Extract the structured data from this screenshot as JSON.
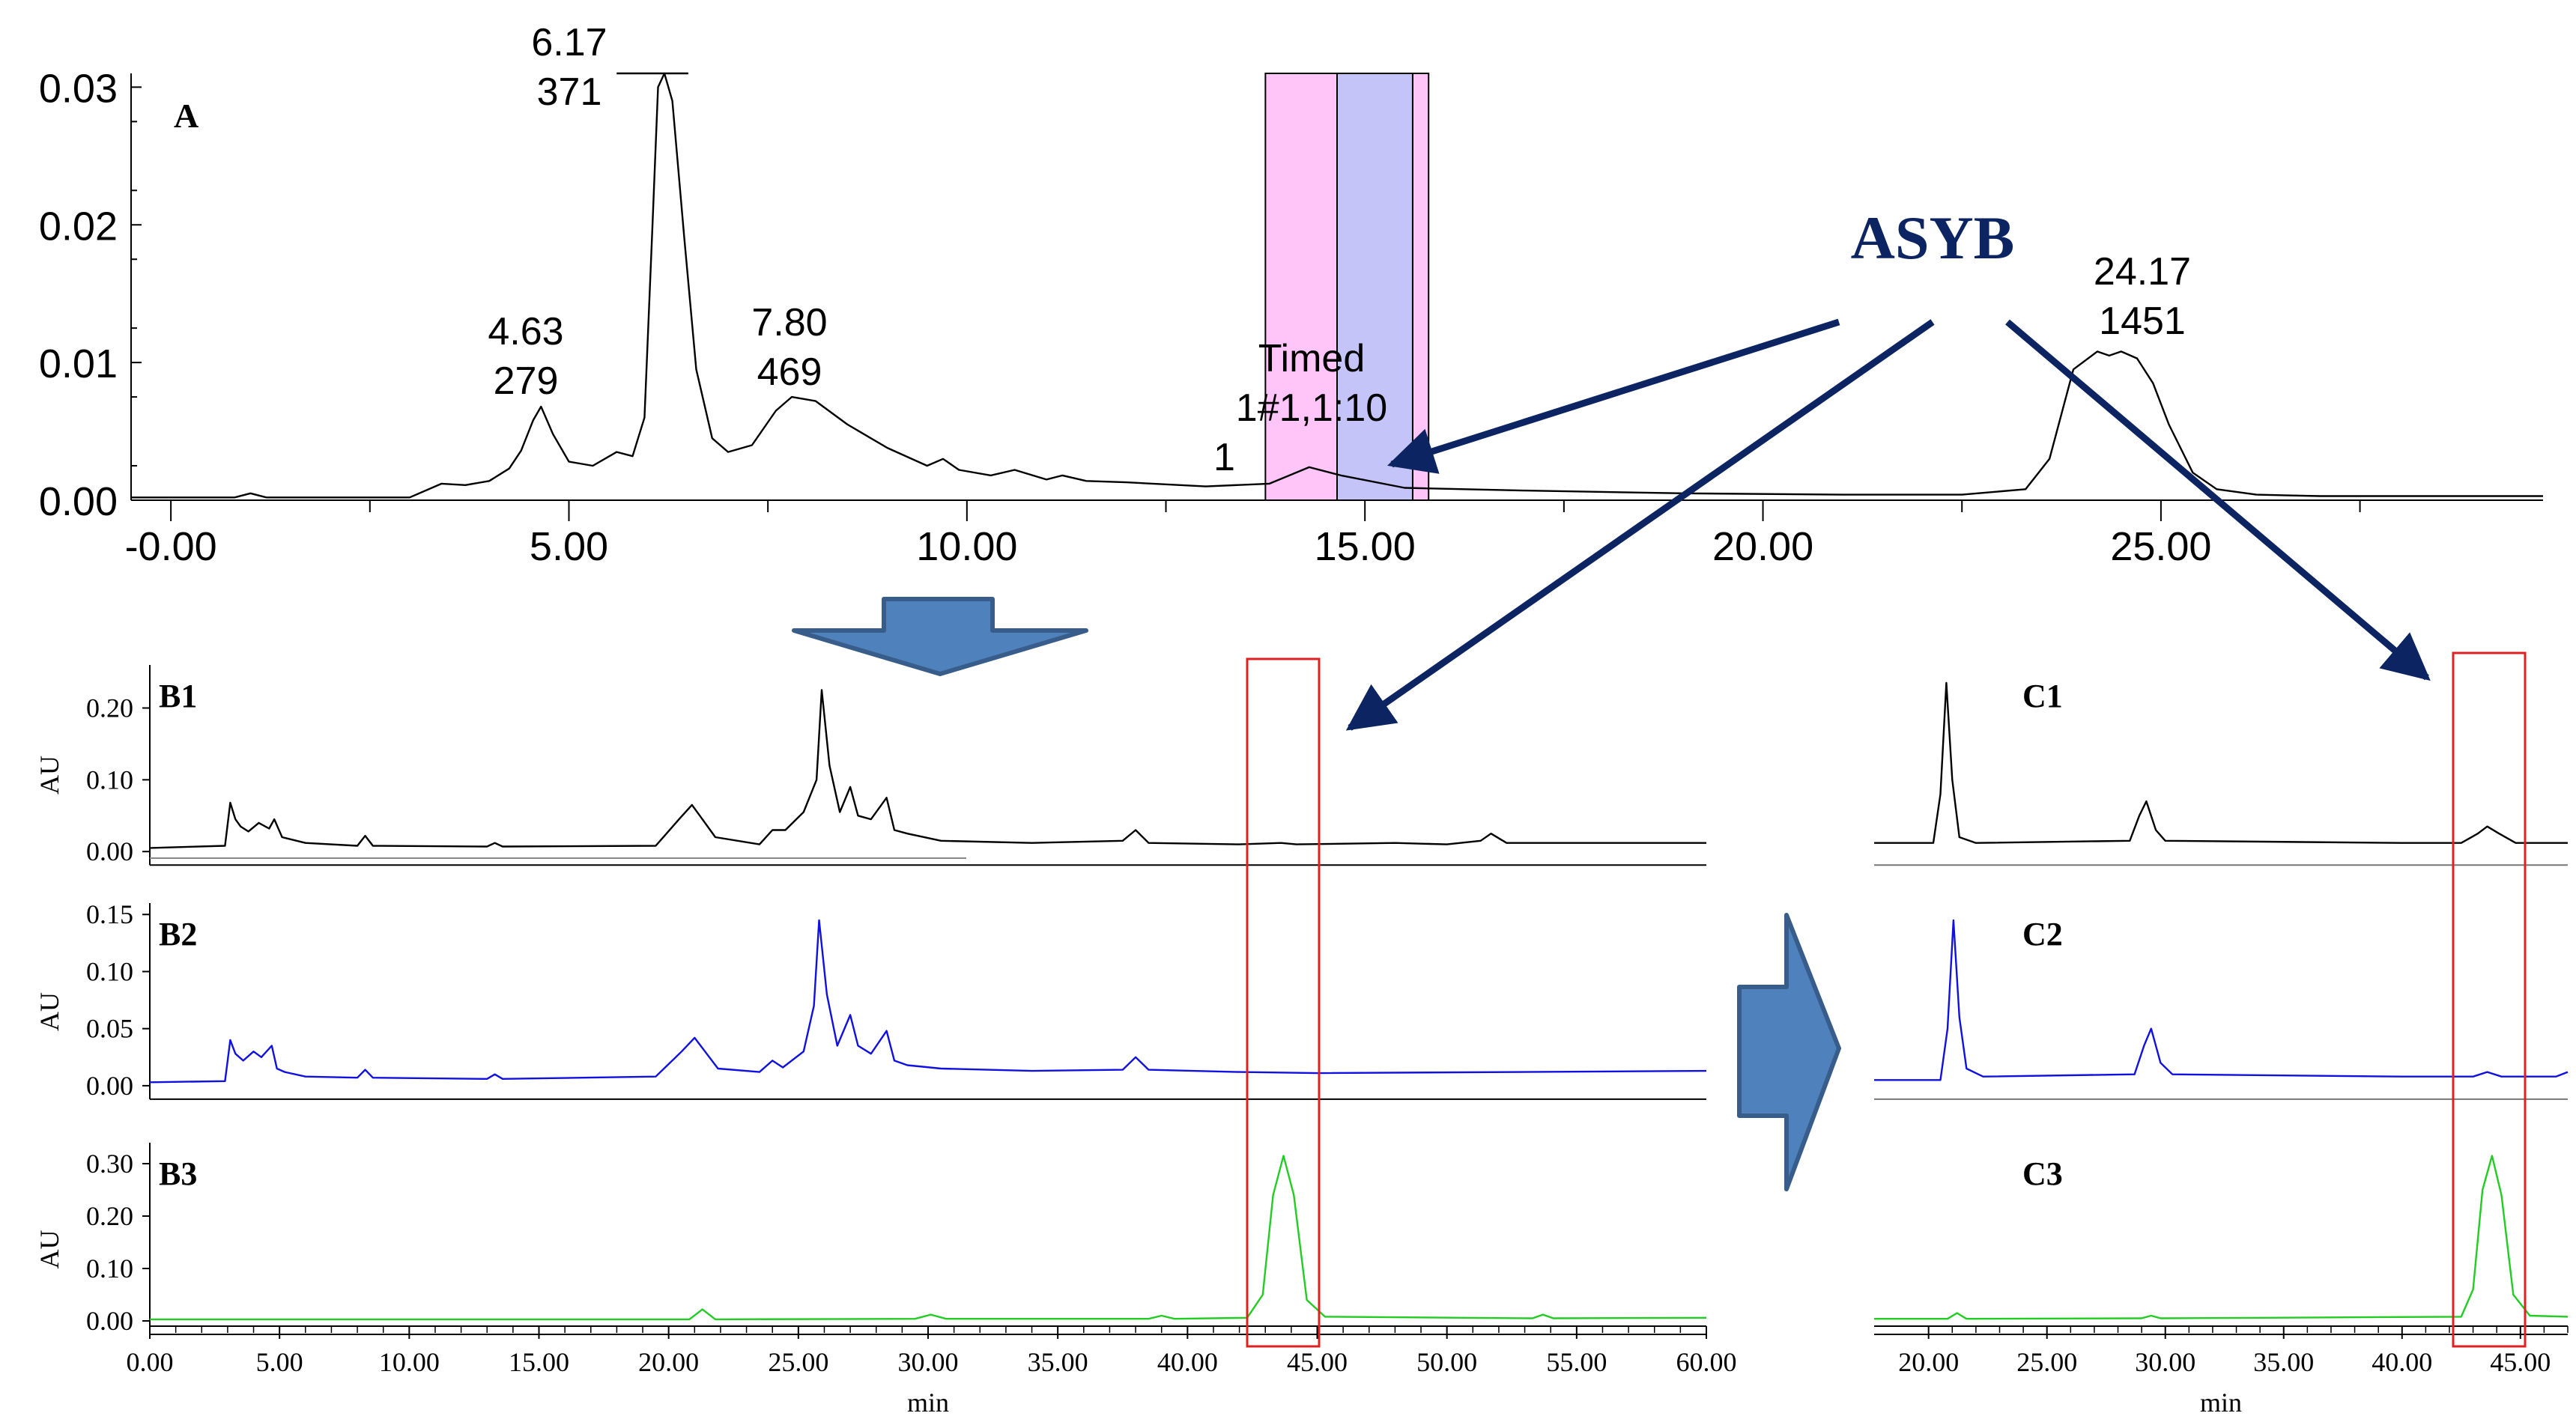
{
  "colors": {
    "trace_black": "#000000",
    "trace_blue": "#1010e0",
    "trace_green": "#22cc22",
    "callout_navy": "#0c2461",
    "band_pink": "#ffc4f8",
    "band_lavender": "#c4c4f8",
    "highlight_red": "#e02020",
    "arrow_fill": "#4f81bd",
    "arrow_stroke": "#385d8a"
  },
  "callout": {
    "label": "ASYB"
  },
  "chart_data": [
    {
      "id": "A",
      "type": "line",
      "panel_label": "A",
      "xlim": [
        -0.5,
        29.8
      ],
      "ylim": [
        0,
        0.031
      ],
      "x_ticks": [
        "-0.00",
        "5.00",
        "10.00",
        "15.00",
        "20.00",
        "25.00"
      ],
      "x_tick_values": [
        0,
        5,
        10,
        15,
        20,
        25
      ],
      "y_ticks": [
        "0.00",
        "0.01",
        "0.02",
        "0.03"
      ],
      "y_tick_values": [
        0,
        0.01,
        0.02,
        0.03
      ],
      "peak_annotations": [
        {
          "lines": [
            "6.17",
            "371"
          ],
          "x": 6.17,
          "y": 0.031
        },
        {
          "lines": [
            "4.63",
            "279"
          ],
          "x": 4.63,
          "y": 0.0068
        },
        {
          "lines": [
            "7.80",
            "469"
          ],
          "x": 7.8,
          "y": 0.0077
        },
        {
          "lines": [
            "24.17",
            "1451"
          ],
          "x": 24.17,
          "y": 0.0112
        },
        {
          "lines": [
            "Timed",
            "1#1,1:10",
            "1"
          ],
          "x": 14.3,
          "y": 0.0025
        }
      ],
      "collection_bands": [
        {
          "from": 13.75,
          "to": 14.65,
          "color": "pink"
        },
        {
          "from": 14.65,
          "to": 15.6,
          "color": "lavender"
        },
        {
          "from": 15.6,
          "to": 15.8,
          "color": "pink"
        }
      ],
      "series": [
        {
          "color": "black",
          "x": [
            -0.5,
            0.8,
            1.0,
            1.2,
            3.0,
            3.4,
            3.7,
            4.0,
            4.25,
            4.4,
            4.55,
            4.65,
            4.8,
            5.0,
            5.3,
            5.6,
            5.8,
            5.95,
            6.05,
            6.12,
            6.2,
            6.3,
            6.45,
            6.6,
            6.8,
            7.0,
            7.3,
            7.6,
            7.8,
            8.1,
            8.5,
            9.0,
            9.5,
            9.7,
            9.9,
            10.3,
            10.6,
            11.0,
            11.2,
            11.5,
            12.0,
            13.0,
            13.8,
            14.3,
            14.7,
            15.5,
            17.0,
            19.0,
            21.0,
            22.5,
            23.3,
            23.6,
            23.9,
            24.2,
            24.35,
            24.5,
            24.7,
            24.9,
            25.1,
            25.4,
            25.7,
            26.2,
            27.0,
            29.8
          ],
          "y": [
            0.0002,
            0.0002,
            0.0005,
            0.0002,
            0.0002,
            0.0012,
            0.0011,
            0.0014,
            0.0023,
            0.0036,
            0.0058,
            0.0068,
            0.0048,
            0.0028,
            0.0025,
            0.0035,
            0.0032,
            0.006,
            0.02,
            0.03,
            0.031,
            0.029,
            0.019,
            0.0095,
            0.0045,
            0.0035,
            0.004,
            0.0065,
            0.0075,
            0.0072,
            0.0055,
            0.0038,
            0.0025,
            0.003,
            0.0022,
            0.0018,
            0.0022,
            0.0015,
            0.0018,
            0.0014,
            0.0013,
            0.001,
            0.0012,
            0.0024,
            0.0018,
            0.0009,
            0.0007,
            0.0005,
            0.0004,
            0.0004,
            0.0008,
            0.003,
            0.0095,
            0.0108,
            0.0105,
            0.0108,
            0.0103,
            0.0085,
            0.0055,
            0.002,
            0.0008,
            0.0004,
            0.0003,
            0.0003
          ]
        }
      ]
    },
    {
      "id": "B1",
      "type": "line",
      "panel_label": "B1",
      "ylabel": "AU",
      "xlim": [
        0,
        60
      ],
      "ylim": [
        -0.005,
        0.26
      ],
      "y_ticks": [
        "0.00",
        "0.10",
        "0.20"
      ],
      "y_tick_values": [
        0,
        0.1,
        0.2
      ],
      "series": [
        {
          "color": "black",
          "x": [
            0,
            2.9,
            3.1,
            3.3,
            3.5,
            3.8,
            4.2,
            4.6,
            4.8,
            5.1,
            6.0,
            8.0,
            8.3,
            8.6,
            13.0,
            13.3,
            13.6,
            19.5,
            20.4,
            20.9,
            21.3,
            21.8,
            23.5,
            24.0,
            24.5,
            25.2,
            25.7,
            25.9,
            26.2,
            26.6,
            27.0,
            27.3,
            27.8,
            28.4,
            28.7,
            29.2,
            30.5,
            34.0,
            37.5,
            38.0,
            38.5,
            42.0,
            43.6,
            44.2,
            48.0,
            50.0,
            51.3,
            51.7,
            52.3,
            60.0
          ],
          "y": [
            0.005,
            0.008,
            0.068,
            0.045,
            0.035,
            0.028,
            0.04,
            0.032,
            0.045,
            0.02,
            0.012,
            0.008,
            0.022,
            0.008,
            0.007,
            0.012,
            0.007,
            0.008,
            0.045,
            0.065,
            0.045,
            0.02,
            0.01,
            0.03,
            0.03,
            0.055,
            0.1,
            0.225,
            0.12,
            0.055,
            0.09,
            0.05,
            0.045,
            0.075,
            0.03,
            0.025,
            0.015,
            0.012,
            0.015,
            0.03,
            0.012,
            0.01,
            0.012,
            0.01,
            0.012,
            0.01,
            0.015,
            0.025,
            0.012,
            0.012
          ]
        }
      ]
    },
    {
      "id": "B2",
      "type": "line",
      "panel_label": "B2",
      "ylabel": "AU",
      "xlim": [
        0,
        60
      ],
      "ylim": [
        -0.004,
        0.16
      ],
      "y_ticks": [
        "0.00",
        "0.05",
        "0.10",
        "0.15"
      ],
      "y_tick_values": [
        0,
        0.05,
        0.1,
        0.15
      ],
      "series": [
        {
          "color": "blue",
          "x": [
            0,
            2.9,
            3.1,
            3.3,
            3.6,
            4.0,
            4.3,
            4.7,
            4.9,
            5.2,
            6.0,
            8.0,
            8.3,
            8.6,
            13.0,
            13.3,
            13.6,
            19.5,
            20.5,
            21.0,
            21.4,
            21.9,
            23.5,
            24.0,
            24.4,
            25.2,
            25.6,
            25.8,
            26.1,
            26.5,
            27.0,
            27.3,
            27.8,
            28.4,
            28.7,
            29.2,
            30.5,
            34.0,
            37.5,
            38.0,
            38.5,
            42.0,
            45.0,
            60.0
          ],
          "y": [
            0.003,
            0.004,
            0.04,
            0.028,
            0.022,
            0.03,
            0.025,
            0.035,
            0.015,
            0.012,
            0.008,
            0.007,
            0.014,
            0.007,
            0.006,
            0.01,
            0.006,
            0.008,
            0.03,
            0.042,
            0.03,
            0.015,
            0.012,
            0.022,
            0.016,
            0.03,
            0.07,
            0.145,
            0.08,
            0.035,
            0.062,
            0.035,
            0.028,
            0.048,
            0.022,
            0.018,
            0.015,
            0.013,
            0.014,
            0.025,
            0.014,
            0.012,
            0.011,
            0.013
          ]
        }
      ]
    },
    {
      "id": "B3",
      "type": "line",
      "panel_label": "B3",
      "ylabel": "AU",
      "xlabel": "min",
      "xlim": [
        0,
        60
      ],
      "ylim": [
        -0.01,
        0.34
      ],
      "x_ticks": [
        "0.00",
        "5.00",
        "10.00",
        "15.00",
        "20.00",
        "25.00",
        "30.00",
        "35.00",
        "40.00",
        "45.00",
        "50.00",
        "55.00",
        "60.00"
      ],
      "x_tick_values": [
        0,
        5,
        10,
        15,
        20,
        25,
        30,
        35,
        40,
        45,
        50,
        55,
        60
      ],
      "y_ticks": [
        "0.00",
        "0.10",
        "0.20",
        "0.30"
      ],
      "y_tick_values": [
        0,
        0.1,
        0.2,
        0.3
      ],
      "series": [
        {
          "color": "green",
          "x": [
            0,
            20.8,
            21.3,
            21.8,
            29.5,
            30.1,
            30.7,
            38.5,
            39.0,
            39.5,
            42.3,
            42.9,
            43.3,
            43.7,
            44.1,
            44.6,
            45.3,
            53.3,
            53.7,
            54.1,
            60.0
          ],
          "y": [
            0.003,
            0.003,
            0.022,
            0.003,
            0.004,
            0.012,
            0.004,
            0.004,
            0.01,
            0.004,
            0.006,
            0.05,
            0.24,
            0.315,
            0.24,
            0.04,
            0.008,
            0.005,
            0.012,
            0.005,
            0.006
          ]
        }
      ]
    },
    {
      "id": "C1",
      "type": "line",
      "panel_label": "C1",
      "xlim": [
        17.7,
        47.0
      ],
      "ylim": [
        -0.005,
        0.26
      ],
      "series": [
        {
          "color": "black",
          "x": [
            17.7,
            20.2,
            20.5,
            20.75,
            21.0,
            21.3,
            22.0,
            28.5,
            28.9,
            29.2,
            29.6,
            30.0,
            40.0,
            42.5,
            43.2,
            43.6,
            44.1,
            44.8,
            47.0
          ],
          "y": [
            0.012,
            0.012,
            0.08,
            0.235,
            0.1,
            0.02,
            0.012,
            0.015,
            0.05,
            0.07,
            0.03,
            0.015,
            0.012,
            0.012,
            0.025,
            0.035,
            0.025,
            0.012,
            0.012
          ]
        }
      ]
    },
    {
      "id": "C2",
      "type": "line",
      "panel_label": "C2",
      "xlim": [
        17.7,
        47.0
      ],
      "ylim": [
        -0.004,
        0.16
      ],
      "series": [
        {
          "color": "blue",
          "x": [
            17.7,
            20.5,
            20.8,
            21.05,
            21.3,
            21.6,
            22.3,
            28.7,
            29.1,
            29.4,
            29.8,
            30.3,
            40.0,
            43.0,
            43.6,
            44.2,
            46.5,
            47.0
          ],
          "y": [
            0.005,
            0.005,
            0.05,
            0.145,
            0.06,
            0.015,
            0.008,
            0.01,
            0.035,
            0.05,
            0.02,
            0.01,
            0.008,
            0.008,
            0.012,
            0.008,
            0.008,
            0.012
          ]
        }
      ]
    },
    {
      "id": "C3",
      "type": "line",
      "panel_label": "C3",
      "xlabel": "min",
      "xlim": [
        17.7,
        47.0
      ],
      "ylim": [
        -0.01,
        0.34
      ],
      "x_ticks": [
        "20.00",
        "25.00",
        "30.00",
        "35.00",
        "40.00",
        "45.00"
      ],
      "x_tick_values": [
        20,
        25,
        30,
        35,
        40,
        45
      ],
      "series": [
        {
          "color": "green",
          "x": [
            17.7,
            20.8,
            21.2,
            21.6,
            29.0,
            29.4,
            29.8,
            42.5,
            43.0,
            43.4,
            43.8,
            44.2,
            44.7,
            45.4,
            47.0
          ],
          "y": [
            0.004,
            0.004,
            0.015,
            0.004,
            0.005,
            0.01,
            0.005,
            0.008,
            0.06,
            0.25,
            0.315,
            0.24,
            0.05,
            0.01,
            0.008
          ]
        }
      ]
    }
  ]
}
